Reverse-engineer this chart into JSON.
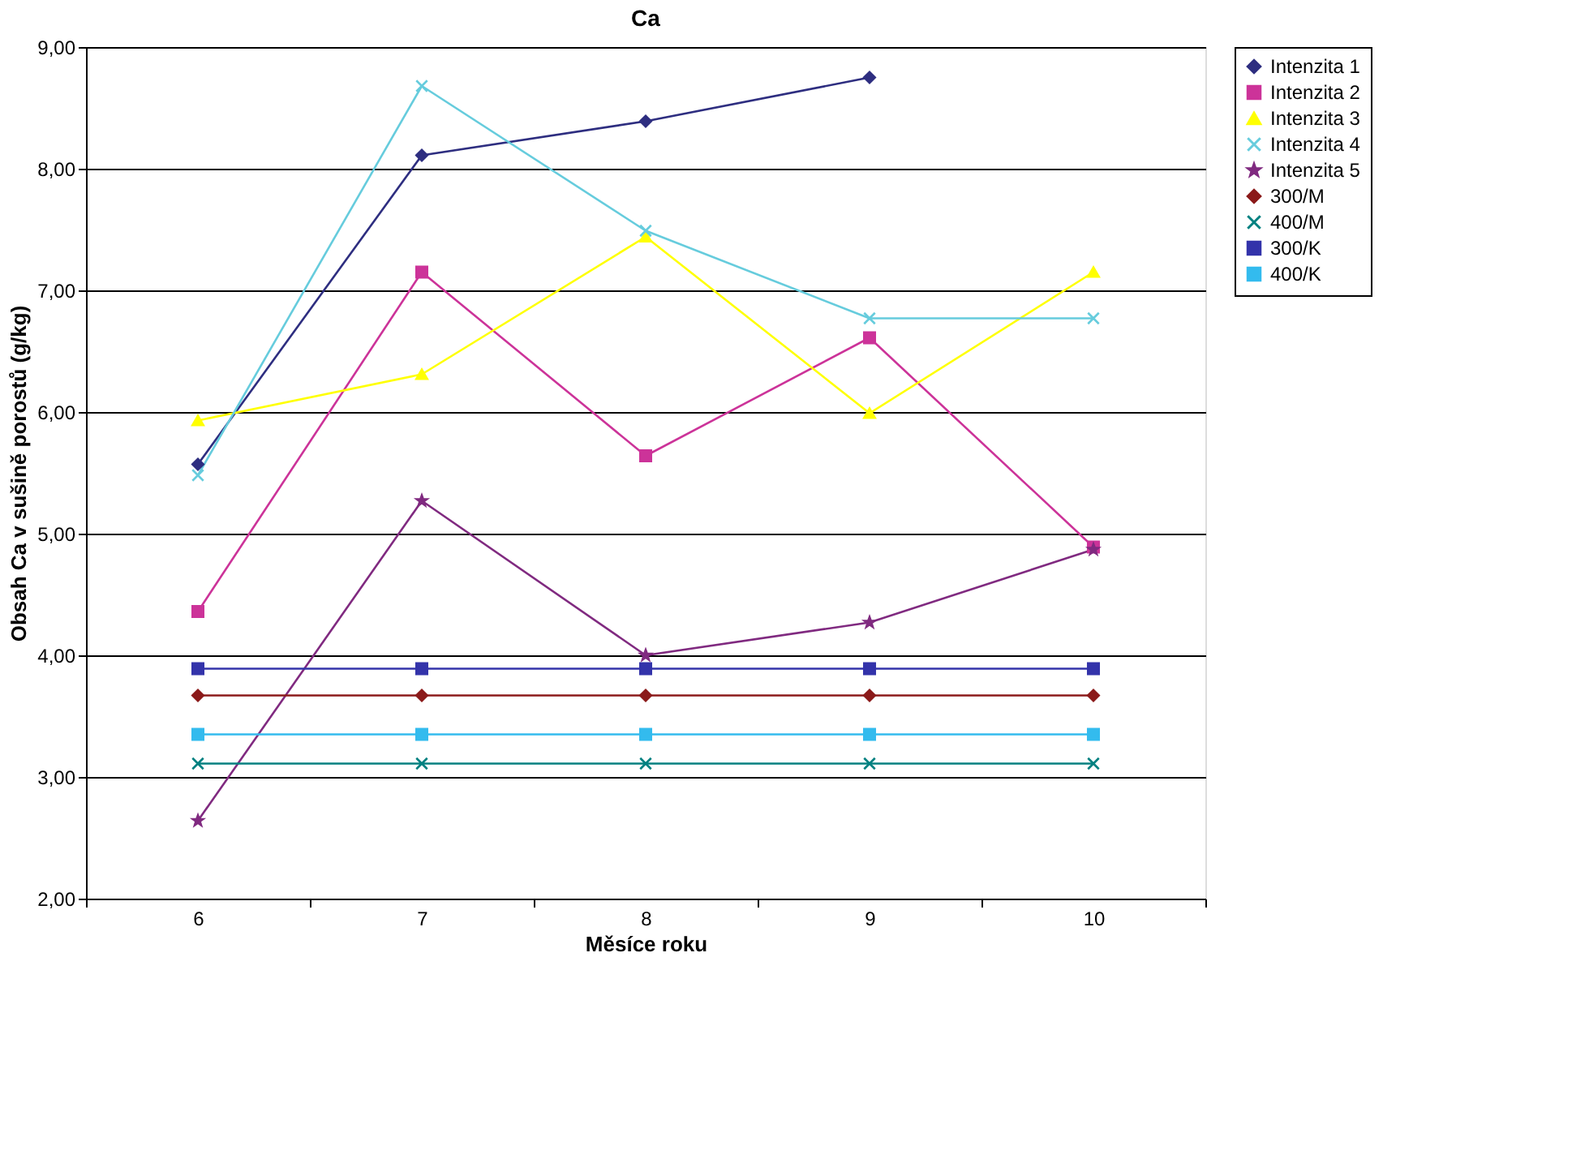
{
  "chart_data": {
    "type": "line",
    "title": "Ca",
    "xlabel": "Měsíce roku",
    "ylabel": "Obsah Ca v sušině porostů (g/kg)",
    "categories": [
      "6",
      "7",
      "8",
      "9",
      "10"
    ],
    "ylim": [
      2,
      9
    ],
    "yticks": [
      {
        "value": 2,
        "label": "2,00"
      },
      {
        "value": 3,
        "label": "3,00"
      },
      {
        "value": 4,
        "label": "4,00"
      },
      {
        "value": 5,
        "label": "5,00"
      },
      {
        "value": 6,
        "label": "6,00"
      },
      {
        "value": 7,
        "label": "7,00"
      },
      {
        "value": 8,
        "label": "8,00"
      },
      {
        "value": 9,
        "label": "9,00"
      }
    ],
    "grid": "y",
    "legend": "right",
    "line_style": "solid",
    "series": [
      {
        "name": "Intenzita 1",
        "color": "#2e2e80",
        "marker": "diamond",
        "values": [
          5.57,
          8.11,
          8.39,
          8.75,
          null
        ]
      },
      {
        "name": "Intenzita 2",
        "color": "#cc3399",
        "marker": "square",
        "values": [
          4.36,
          7.15,
          5.64,
          6.61,
          4.89
        ]
      },
      {
        "name": "Intenzita 3",
        "color": "#ffff00",
        "marker": "triangle",
        "values": [
          5.93,
          6.31,
          7.44,
          5.99,
          7.15
        ]
      },
      {
        "name": "Intenzita 4",
        "color": "#66ccdd",
        "marker": "cross",
        "values": [
          5.48,
          8.68,
          7.49,
          6.77,
          6.77
        ]
      },
      {
        "name": "Intenzita 5",
        "color": "#802a80",
        "marker": "star",
        "values": [
          2.64,
          5.27,
          4.0,
          4.27,
          4.87
        ]
      },
      {
        "name": "300/M",
        "color": "#8b1a1a",
        "marker": "diamond",
        "values": [
          3.67,
          3.67,
          3.67,
          3.67,
          3.67
        ]
      },
      {
        "name": "400/M",
        "color": "#008080",
        "marker": "cross",
        "values": [
          3.11,
          3.11,
          3.11,
          3.11,
          3.11
        ]
      },
      {
        "name": "300/K",
        "color": "#3333aa",
        "marker": "square",
        "values": [
          3.89,
          3.89,
          3.89,
          3.89,
          3.89
        ]
      },
      {
        "name": "400/K",
        "color": "#33bbee",
        "marker": "square",
        "values": [
          3.35,
          3.35,
          3.35,
          3.35,
          3.35
        ]
      }
    ]
  }
}
